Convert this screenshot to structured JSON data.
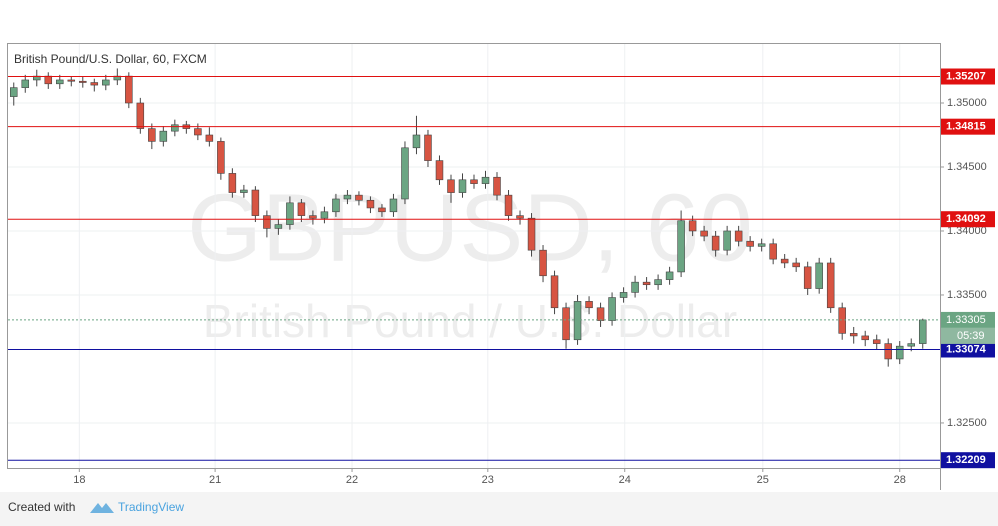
{
  "chart_data": {
    "type": "candlestick",
    "title": "British Pound/U.S. Dollar, 60, FXCM",
    "watermark": "GBPUSD, 60",
    "watermark_subtitle": "British Pound / U.S. Dollar",
    "up_color": "#6ba583",
    "down_color": "#d75442",
    "open": [
      1.3505,
      1.3512,
      1.3518,
      1.3521,
      1.3515,
      1.3518,
      1.3517,
      1.3516,
      1.3514,
      1.3518,
      1.3521,
      1.35,
      1.348,
      1.347,
      1.3478,
      1.3483,
      1.348,
      1.3475,
      1.347,
      1.3445,
      1.343,
      1.3432,
      1.3412,
      1.3402,
      1.3405,
      1.3422,
      1.3412,
      1.341,
      1.3415,
      1.3425,
      1.3428,
      1.3424,
      1.3418,
      1.3415,
      1.3425,
      1.3465,
      1.3475,
      1.3455,
      1.344,
      1.343,
      1.344,
      1.3437,
      1.3442,
      1.3428,
      1.3412,
      1.341,
      1.3385,
      1.3365,
      1.334,
      1.3315,
      1.3345,
      1.334,
      1.333,
      1.3348,
      1.3352,
      1.336,
      1.3358,
      1.3362,
      1.3368,
      1.3408,
      1.34,
      1.3396,
      1.3385,
      1.34,
      1.3392,
      1.3388,
      1.339,
      1.3378,
      1.3375,
      1.3372,
      1.3355,
      1.3375,
      1.334,
      1.332,
      1.3318,
      1.3315,
      1.3312,
      1.33,
      1.331,
      1.3312
    ],
    "high": [
      1.3516,
      1.3522,
      1.3526,
      1.3524,
      1.3522,
      1.3521,
      1.3521,
      1.3519,
      1.3522,
      1.3527,
      1.3524,
      1.3504,
      1.3484,
      1.3482,
      1.3487,
      1.3486,
      1.3484,
      1.3481,
      1.3473,
      1.3449,
      1.3436,
      1.3435,
      1.3416,
      1.3409,
      1.3427,
      1.3425,
      1.3416,
      1.3419,
      1.3429,
      1.3432,
      1.3431,
      1.3427,
      1.3421,
      1.3429,
      1.347,
      1.349,
      1.3479,
      1.3459,
      1.3444,
      1.3445,
      1.3444,
      1.3447,
      1.3446,
      1.3432,
      1.3416,
      1.3414,
      1.3389,
      1.3369,
      1.3344,
      1.335,
      1.3349,
      1.3344,
      1.3352,
      1.3356,
      1.3365,
      1.3364,
      1.3366,
      1.3372,
      1.3416,
      1.3412,
      1.3404,
      1.34,
      1.3404,
      1.3404,
      1.3396,
      1.3394,
      1.3394,
      1.3382,
      1.3379,
      1.3376,
      1.3379,
      1.3379,
      1.3344,
      1.3325,
      1.3322,
      1.3319,
      1.3316,
      1.3314,
      1.3316,
      1.33315
    ],
    "low": [
      1.3498,
      1.3508,
      1.3513,
      1.3511,
      1.3511,
      1.3513,
      1.3512,
      1.3509,
      1.351,
      1.3514,
      1.3496,
      1.3476,
      1.3464,
      1.3466,
      1.3474,
      1.3476,
      1.3471,
      1.3466,
      1.344,
      1.3426,
      1.3426,
      1.3407,
      1.3395,
      1.3397,
      1.3401,
      1.3407,
      1.3405,
      1.3406,
      1.3411,
      1.3421,
      1.342,
      1.3414,
      1.3411,
      1.3411,
      1.3421,
      1.346,
      1.345,
      1.3436,
      1.3422,
      1.3426,
      1.3433,
      1.3433,
      1.3424,
      1.3408,
      1.3405,
      1.338,
      1.336,
      1.3335,
      1.3308,
      1.3311,
      1.3335,
      1.3325,
      1.3326,
      1.3344,
      1.3348,
      1.3354,
      1.3354,
      1.3358,
      1.3364,
      1.3396,
      1.3392,
      1.338,
      1.3381,
      1.3388,
      1.3384,
      1.3384,
      1.3374,
      1.3371,
      1.3368,
      1.335,
      1.3351,
      1.3336,
      1.3315,
      1.3312,
      1.331,
      1.3307,
      1.3294,
      1.3296,
      1.3306,
      1.3308
    ],
    "close": [
      1.3512,
      1.3518,
      1.3521,
      1.3515,
      1.3518,
      1.3517,
      1.3516,
      1.3514,
      1.3518,
      1.3521,
      1.35,
      1.348,
      1.347,
      1.3478,
      1.3483,
      1.348,
      1.3475,
      1.347,
      1.3445,
      1.343,
      1.3432,
      1.3412,
      1.3402,
      1.3405,
      1.3422,
      1.3412,
      1.341,
      1.3415,
      1.3425,
      1.3428,
      1.3424,
      1.3418,
      1.3415,
      1.3425,
      1.3465,
      1.3475,
      1.3455,
      1.344,
      1.343,
      1.344,
      1.3437,
      1.3442,
      1.3428,
      1.3412,
      1.341,
      1.3385,
      1.3365,
      1.334,
      1.3315,
      1.3345,
      1.334,
      1.333,
      1.3348,
      1.3352,
      1.336,
      1.3358,
      1.3362,
      1.3368,
      1.3408,
      1.34,
      1.3396,
      1.3385,
      1.34,
      1.3392,
      1.3388,
      1.339,
      1.3378,
      1.3375,
      1.3372,
      1.3355,
      1.3375,
      1.334,
      1.332,
      1.3318,
      1.3315,
      1.3312,
      1.33,
      1.331,
      1.3312,
      1.33305
    ],
    "countdown": "05:39",
    "xlim": [
      0,
      81
    ],
    "xticks": [
      {
        "value": 6.2,
        "label": "18"
      },
      {
        "value": 18.0,
        "label": "21"
      },
      {
        "value": 29.9,
        "label": "22"
      },
      {
        "value": 41.7,
        "label": "23"
      },
      {
        "value": 53.6,
        "label": "24"
      },
      {
        "value": 65.6,
        "label": "25"
      },
      {
        "value": 77.5,
        "label": "28"
      }
    ],
    "ylim": [
      1.32148,
      1.35461
    ],
    "yticks": [
      {
        "value": 1.325,
        "label": "1.32500"
      },
      {
        "value": 1.335,
        "label": "1.33500"
      },
      {
        "value": 1.34,
        "label": "1.34000"
      },
      {
        "value": 1.345,
        "label": "1.34500"
      },
      {
        "value": 1.35,
        "label": "1.35000"
      }
    ],
    "levels": [
      {
        "value": 1.35207,
        "color": "#e01010"
      },
      {
        "value": 1.34815,
        "color": "#e01010"
      },
      {
        "value": 1.34092,
        "color": "#e01010"
      },
      {
        "value": 1.33074,
        "color": "#1010a0"
      },
      {
        "value": 1.32209,
        "color": "#1010a0"
      }
    ],
    "grid": true
  },
  "footer": {
    "created_with": "Created with",
    "brand": "TradingView"
  }
}
